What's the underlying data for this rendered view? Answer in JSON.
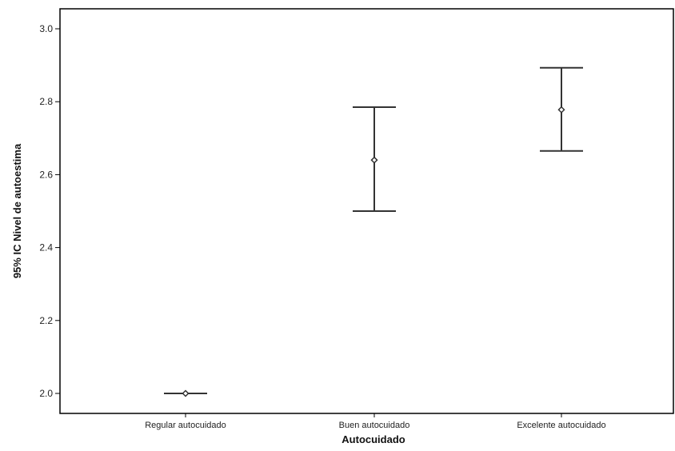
{
  "chart_data": {
    "type": "errorbar",
    "title": "",
    "xlabel": "Autocuidado",
    "ylabel": "95% IC Nivel de autoestima",
    "ylim": [
      1.95,
      3.06
    ],
    "yticks": [
      2.0,
      2.2,
      2.4,
      2.6,
      2.8,
      3.0
    ],
    "ytick_labels": [
      "2.0",
      "2.2",
      "2.4",
      "2.6",
      "2.8",
      "3.0"
    ],
    "grid": false,
    "categories": [
      "Regular autocuidado",
      "Buen autocuidado",
      "Excelente autocuidado"
    ],
    "points": [
      {
        "category": "Regular autocuidado",
        "mean": 2.0,
        "lower": 2.0,
        "upper": 2.0
      },
      {
        "category": "Buen autocuidado",
        "mean": 2.64,
        "lower": 2.5,
        "upper": 2.785
      },
      {
        "category": "Excelente autocuidado",
        "mean": 2.778,
        "lower": 2.665,
        "upper": 2.893
      }
    ],
    "colors": {
      "line": "#333333",
      "marker_fill": "#ffffff",
      "frame": "#000000"
    }
  }
}
